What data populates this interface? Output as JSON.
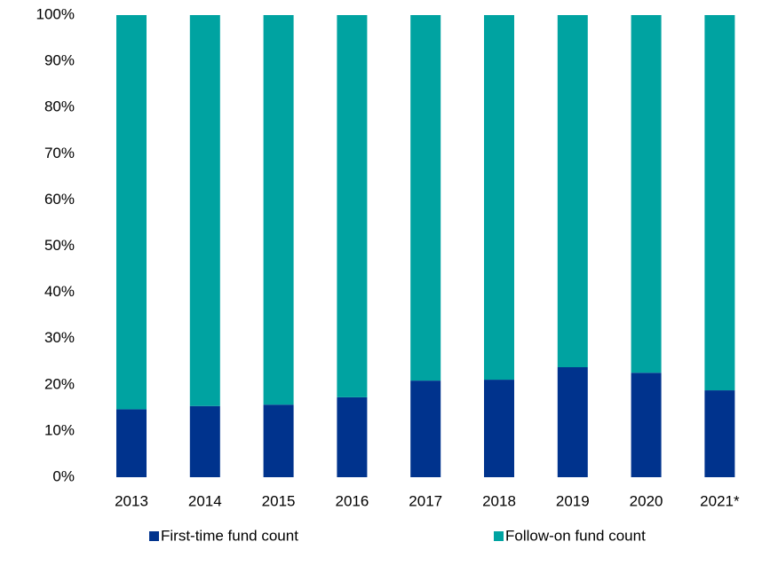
{
  "chart_data": {
    "type": "stacked_bar",
    "categories": [
      "2013",
      "2014",
      "2015",
      "2016",
      "2017",
      "2018",
      "2019",
      "2020",
      "2021*"
    ],
    "series": [
      {
        "name": "First-time fund count",
        "color": "#00338d",
        "values": [
          14.7,
          15.4,
          15.7,
          17.3,
          20.9,
          21.1,
          23.8,
          22.6,
          18.8
        ]
      },
      {
        "name": "Follow-on fund count",
        "color": "#00a3a1",
        "values": [
          85.3,
          84.6,
          84.3,
          82.7,
          79.1,
          78.9,
          76.2,
          77.4,
          81.2
        ]
      }
    ],
    "ylim": [
      0,
      100
    ],
    "yticks": [
      {
        "value": 0,
        "label": "0%"
      },
      {
        "value": 10,
        "label": "10%"
      },
      {
        "value": 20,
        "label": "20%"
      },
      {
        "value": 30,
        "label": "30%"
      },
      {
        "value": 40,
        "label": "40%"
      },
      {
        "value": 50,
        "label": "50%"
      },
      {
        "value": 60,
        "label": "60%"
      },
      {
        "value": 70,
        "label": "70%"
      },
      {
        "value": 80,
        "label": "80%"
      },
      {
        "value": 90,
        "label": "90%"
      },
      {
        "value": 100,
        "label": "100%"
      }
    ],
    "legend": "bottom"
  }
}
